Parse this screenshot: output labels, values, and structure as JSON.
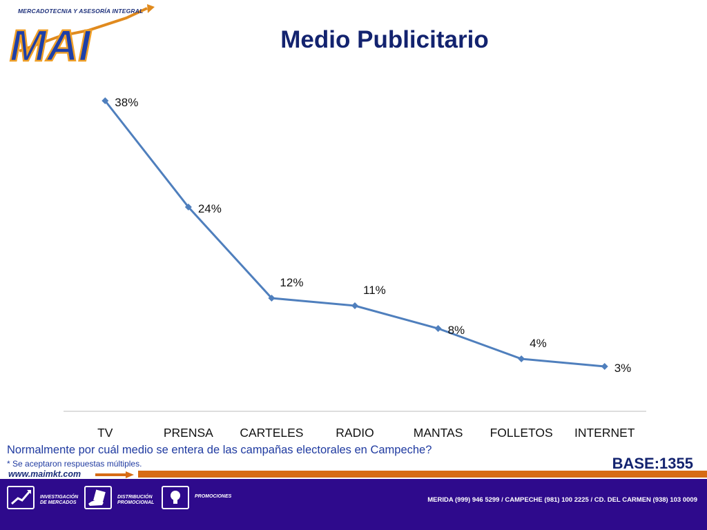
{
  "header": {
    "logo_caption": "MERCADOTECNIA Y ASESORÍA INTEGRAL",
    "logo_text": "MAI",
    "title": "Medio Publicitario"
  },
  "chart_data": {
    "type": "line",
    "categories": [
      "TV",
      "PRENSA",
      "CARTELES",
      "RADIO",
      "MANTAS",
      "FOLLETOS",
      "INTERNET"
    ],
    "values": [
      38,
      24,
      12,
      11,
      8,
      4,
      3
    ],
    "value_labels": [
      "38%",
      "24%",
      "12%",
      "11%",
      "8%",
      "4%",
      "3%"
    ],
    "unit": "%",
    "title": "",
    "xlabel": "",
    "ylabel": "",
    "ylim": [
      -1,
      38
    ],
    "grid": false,
    "legend": "none",
    "series_color": "#4f7fbd",
    "marker": "diamond"
  },
  "question": "Normalmente por cuál medio se entera de las campañas electorales en Campeche?",
  "note": "* Se aceptaron respuestas múltiples.",
  "base": "BASE:1355",
  "footer": {
    "website": "www.maimkt.com",
    "services": [
      {
        "label": "INVESTIGACIÓN\nDE MERCADOS",
        "icon": "chart-icon"
      },
      {
        "label": "DISTRIBUCIÓN\nPROMOCIONAL",
        "icon": "hand-flyer-icon"
      },
      {
        "label": "PROMOCIONES",
        "icon": "lightbulb-icon"
      }
    ],
    "contact": "MERIDA (999) 946 5299 / CAMPECHE (981) 100 2225 / CD. DEL CARMEN (938) 103 0009"
  },
  "colors": {
    "title": "#13236f",
    "accent_orange": "#d76b14",
    "footer_bg": "#2e0a8c",
    "question_text": "#1f3aa0"
  }
}
